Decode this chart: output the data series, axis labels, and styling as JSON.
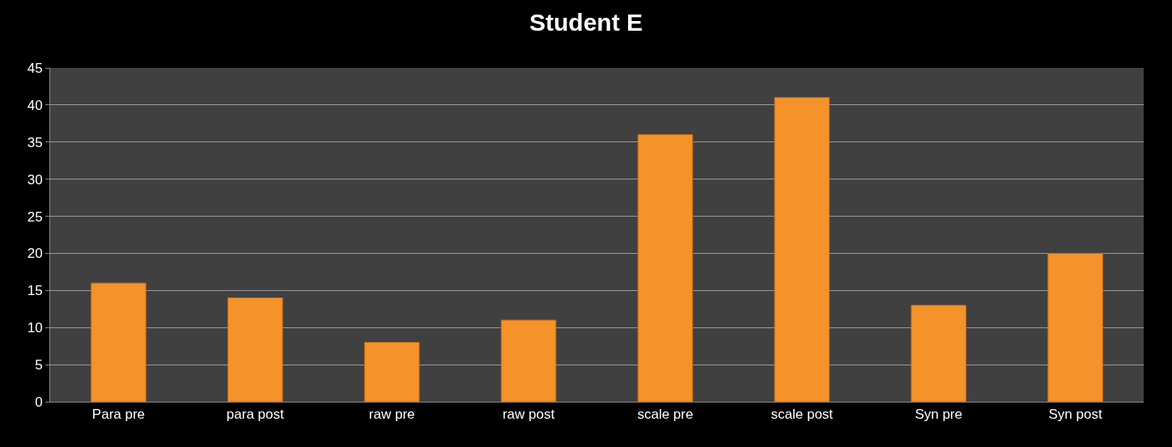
{
  "chart_data": {
    "type": "bar",
    "title": "Student E",
    "categories": [
      "Para pre",
      "para post",
      "raw pre",
      "raw post",
      "scale pre",
      "scale post",
      "Syn pre",
      "Syn post"
    ],
    "values": [
      16,
      14,
      8,
      11,
      36,
      41,
      13,
      20
    ],
    "color": "#f5922a",
    "ylim": [
      0,
      45
    ],
    "yticks": [
      0,
      5,
      10,
      15,
      20,
      25,
      30,
      35,
      40,
      45
    ],
    "grid": "y"
  }
}
